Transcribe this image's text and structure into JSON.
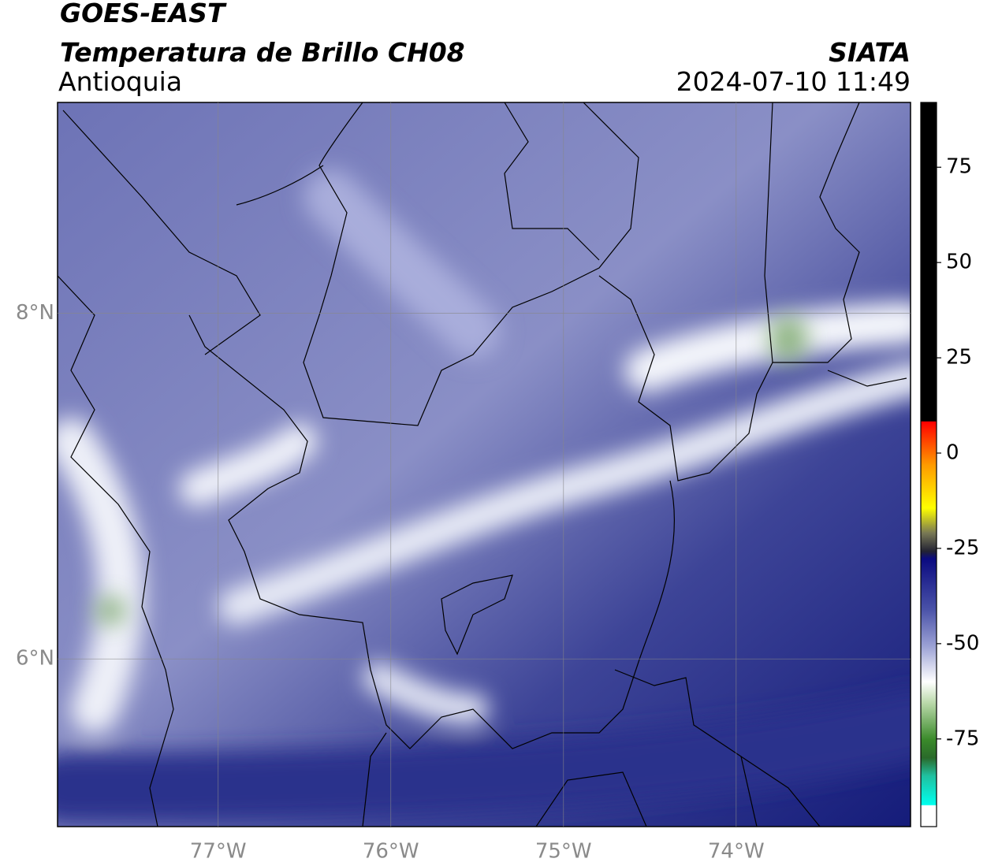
{
  "header": {
    "title": "GOES-EAST",
    "subtitle": "Temperatura de Brillo CH08",
    "region": "Antioquia",
    "source": "SIATA",
    "datetime": "2024-07-10 11:49"
  },
  "map": {
    "xlim": [
      -77.93,
      -72.99
    ],
    "ylim": [
      5.03,
      9.22
    ],
    "xticks": [
      {
        "value": -77,
        "label": "77°W"
      },
      {
        "value": -76,
        "label": "76°W"
      },
      {
        "value": -75,
        "label": "75°W"
      },
      {
        "value": -74,
        "label": "74°W"
      }
    ],
    "yticks": [
      {
        "value": 8,
        "label": "8°N"
      },
      {
        "value": 6,
        "label": "6°N"
      }
    ],
    "grid": true
  },
  "colorbar": {
    "lim": [
      -98,
      92
    ],
    "ticks": [
      75,
      50,
      25,
      0,
      -25,
      -50,
      -75
    ]
  }
}
